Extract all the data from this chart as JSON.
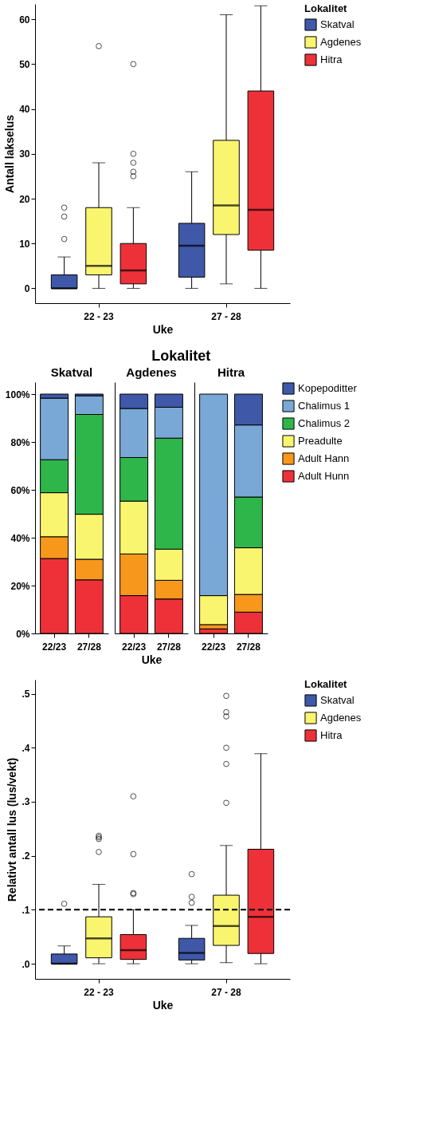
{
  "chart_data": [
    {
      "type": "box",
      "categories": [
        "22 - 23",
        "27 - 28"
      ],
      "xlabel": "Uke",
      "ylabel": "Antall lakselus",
      "legend_title": "Lokalitet",
      "legend": "right",
      "ylim": [
        -3.3,
        63.4
      ],
      "yticks": [
        0,
        10,
        20,
        30,
        40,
        50,
        60
      ],
      "series": [
        {
          "name": "Skatval",
          "color": "#3f58a8",
          "boxes": [
            {
              "low": 0,
              "q1": 0,
              "median": 0,
              "q3": 3,
              "high": 7,
              "outliers": [
                11,
                16,
                18
              ]
            },
            {
              "low": 0,
              "q1": 2.5,
              "median": 9.5,
              "q3": 14.5,
              "high": 26
            }
          ]
        },
        {
          "name": "Agdenes",
          "color": "#faf56e",
          "boxes": [
            {
              "low": 0,
              "q1": 3,
              "median": 5,
              "q3": 18,
              "high": 28,
              "outliers": [
                54
              ]
            },
            {
              "low": 1,
              "q1": 12,
              "median": 18.5,
              "q3": 33,
              "high": 61
            }
          ]
        },
        {
          "name": "Hitra",
          "color": "#ee3139",
          "boxes": [
            {
              "low": 0,
              "q1": 1,
              "median": 4,
              "q3": 10,
              "high": 18,
              "outliers": [
                25,
                26,
                28,
                30,
                50
              ]
            },
            {
              "low": 0,
              "q1": 8.5,
              "median": 17.5,
              "q3": 44,
              "high": 63
            }
          ]
        }
      ]
    },
    {
      "type": "bar",
      "stacked": true,
      "title": "Skatval",
      "annotations": [
        "Lokalitet"
      ],
      "legend": "right",
      "categories": [
        "22/23",
        "27/28"
      ],
      "ylim": [
        0,
        105
      ],
      "yticks": [
        {
          "value": 0,
          "label": "0%"
        },
        {
          "value": 20,
          "label": "20%"
        },
        {
          "value": 40,
          "label": "40%"
        },
        {
          "value": 60,
          "label": "60%"
        },
        {
          "value": 80,
          "label": "80%"
        },
        {
          "value": 100,
          "label": "100%"
        }
      ],
      "series": [
        {
          "name": "Adult Hunn",
          "color": "#ee3139",
          "values": [
            31.3,
            22.4
          ]
        },
        {
          "name": "Adult Hann",
          "color": "#f7981d",
          "values": [
            9.1,
            8.6
          ]
        },
        {
          "name": "Preadulte",
          "color": "#faf56e",
          "values": [
            18.4,
            18.8
          ]
        },
        {
          "name": "Chalimus 2",
          "color": "#2fb64a",
          "values": [
            13.8,
            41.7
          ]
        },
        {
          "name": "Chalimus 1",
          "color": "#7aa8d6",
          "values": [
            25.7,
            7.8
          ]
        },
        {
          "name": "Kopepoditter",
          "color": "#3f58a8",
          "values": [
            1.7,
            0.7
          ]
        }
      ]
    },
    {
      "type": "bar",
      "stacked": true,
      "title": "Agdenes",
      "xlabel": "Uke",
      "tick_labels": "x",
      "categories": [
        "22/23",
        "27/28"
      ],
      "ylim": [
        0,
        105
      ],
      "series": [
        {
          "name": "Adult Hunn",
          "color": "#ee3139",
          "values": [
            15.8,
            14.4
          ]
        },
        {
          "name": "Adult Hann",
          "color": "#f7981d",
          "values": [
            17.4,
            7.8
          ]
        },
        {
          "name": "Preadulte",
          "color": "#faf56e",
          "values": [
            22.1,
            13.0
          ]
        },
        {
          "name": "Chalimus 2",
          "color": "#2fb64a",
          "values": [
            18.2,
            46.4
          ]
        },
        {
          "name": "Chalimus 1",
          "color": "#7aa8d6",
          "values": [
            20.5,
            12.9
          ]
        },
        {
          "name": "Kopepoditter",
          "color": "#3f58a8",
          "values": [
            6.0,
            5.5
          ]
        }
      ]
    },
    {
      "type": "bar",
      "stacked": true,
      "title": "Hitra",
      "tick_labels": "x",
      "categories": [
        "22/23",
        "27/28"
      ],
      "ylim": [
        0,
        105
      ],
      "series": [
        {
          "name": "Adult Hunn",
          "color": "#ee3139",
          "values": [
            1.9,
            8.9
          ]
        },
        {
          "name": "Adult Hann",
          "color": "#f7981d",
          "values": [
            1.8,
            7.4
          ]
        },
        {
          "name": "Preadulte",
          "color": "#faf56e",
          "values": [
            12.1,
            19.5
          ]
        },
        {
          "name": "Chalimus 2",
          "color": "#2fb64a",
          "values": [
            null,
            21.2
          ]
        },
        {
          "name": "Chalimus 1",
          "color": "#7aa8d6",
          "values": [
            84.2,
            30.1
          ]
        },
        {
          "name": "Kopepoditter",
          "color": "#3f58a8",
          "values": [
            null,
            12.9
          ]
        }
      ]
    },
    {
      "type": "box",
      "categories": [
        "22 - 23",
        "27 - 28"
      ],
      "xlabel": "Uke",
      "ylabel": "Relativt antall lus (lus/vekt)",
      "legend_title": "Lokalitet",
      "legend": "right",
      "ylim": [
        -0.028,
        0.526
      ],
      "yticks": [
        {
          "value": 0,
          "label": ".0"
        },
        {
          "value": 0.1,
          "label": ".1"
        },
        {
          "value": 0.2,
          "label": ".2"
        },
        {
          "value": 0.3,
          "label": ".3"
        },
        {
          "value": 0.4,
          "label": ".4"
        },
        {
          "value": 0.5,
          "label": ".5"
        }
      ],
      "ref_lines": [
        {
          "axis": "y",
          "value": 0.1,
          "color": "#000000",
          "line_style": "dashed"
        }
      ],
      "series": [
        {
          "name": "Skatval",
          "color": "#3f58a8",
          "boxes": [
            {
              "low": 0,
              "q1": 0,
              "median": 0,
              "q3": 0.018,
              "high": 0.033,
              "outliers": [
                0.111
              ]
            },
            {
              "low": 0,
              "q1": 0.007,
              "median": 0.02,
              "q3": 0.047,
              "high": 0.071,
              "outliers": [
                0.113,
                0.124,
                0.166
              ]
            }
          ]
        },
        {
          "name": "Agdenes",
          "color": "#faf56e",
          "boxes": [
            {
              "low": 0,
              "q1": 0.011,
              "median": 0.047,
              "q3": 0.087,
              "high": 0.147,
              "outliers": [
                0.207,
                0.231,
                0.234,
                0.237
              ]
            },
            {
              "low": 0.002,
              "q1": 0.034,
              "median": 0.07,
              "q3": 0.127,
              "high": 0.219,
              "outliers": [
                0.298,
                0.37,
                0.4,
                0.458,
                0.466,
                0.496
              ]
            }
          ]
        },
        {
          "name": "Hitra",
          "color": "#ee3139",
          "boxes": [
            {
              "low": 0,
              "q1": 0.008,
              "median": 0.025,
              "q3": 0.054,
              "high": 0.1,
              "outliers": [
                0.129,
                0.131,
                0.203,
                0.31
              ]
            },
            {
              "low": 0,
              "q1": 0.019,
              "median": 0.087,
              "q3": 0.212,
              "high": 0.389
            }
          ]
        }
      ]
    }
  ]
}
